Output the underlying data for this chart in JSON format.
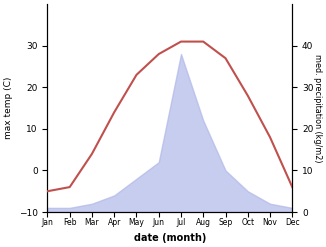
{
  "months": [
    1,
    2,
    3,
    4,
    5,
    6,
    7,
    8,
    9,
    10,
    11,
    12
  ],
  "month_labels": [
    "Jan",
    "Feb",
    "Mar",
    "Apr",
    "May",
    "Jun",
    "Jul",
    "Aug",
    "Sep",
    "Oct",
    "Nov",
    "Dec"
  ],
  "temp": [
    -5,
    -4,
    4,
    14,
    23,
    28,
    31,
    31,
    27,
    18,
    8,
    -4
  ],
  "precip": [
    1,
    1,
    2,
    4,
    8,
    12,
    38,
    22,
    10,
    5,
    2,
    1
  ],
  "temp_color": "#c0504d",
  "precip_fill_color": "#b0b8e8",
  "temp_ylim": [
    -10,
    40
  ],
  "precip_ylim": [
    0,
    50
  ],
  "temp_yticks": [
    -10,
    0,
    10,
    20,
    30
  ],
  "precip_yticks": [
    0,
    10,
    20,
    30,
    40
  ],
  "xlabel": "date (month)",
  "ylabel_left": "max temp (C)",
  "ylabel_right": "med. precipitation (kg/m2)",
  "background_color": "#ffffff"
}
